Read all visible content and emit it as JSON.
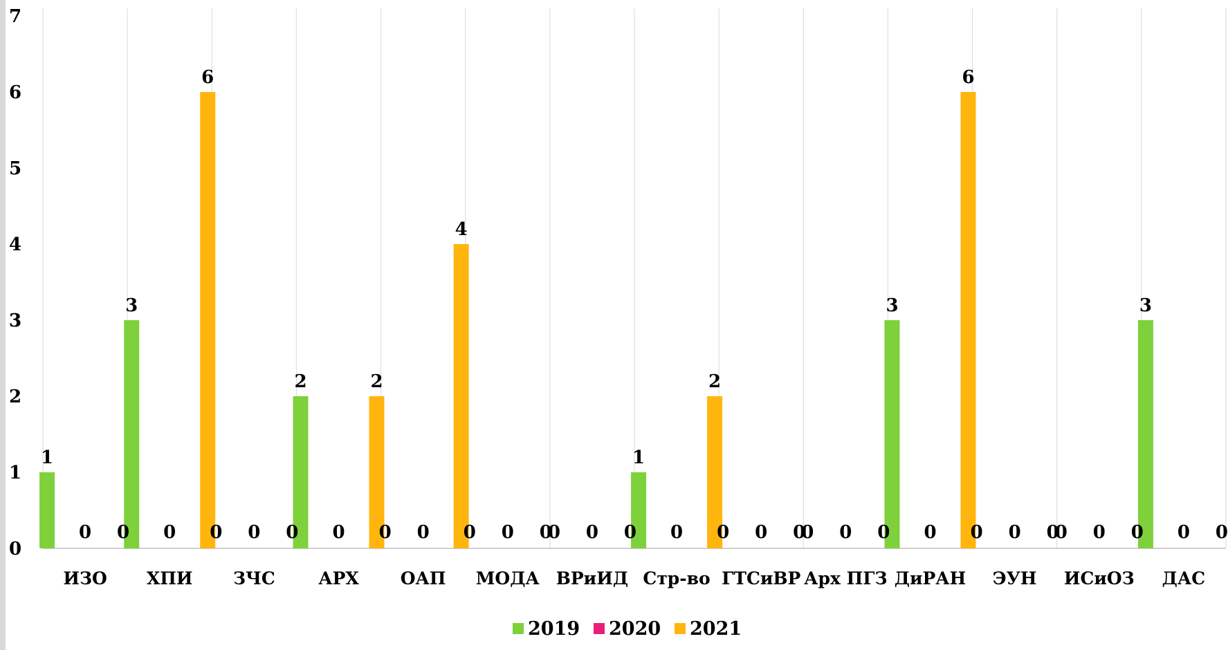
{
  "chart_data": {
    "type": "bar",
    "categories": [
      "ИЗО",
      "ХПИ",
      "ЗЧС",
      "АРХ",
      "ОАП",
      "МОДА",
      "ВРиИД",
      "Стр-во",
      "ГТСиВР",
      "Арх ПГЗ",
      "ДиРАН",
      "ЭУН",
      "ИСиОЗ",
      "ДАС"
    ],
    "series": [
      {
        "name": "2019",
        "color": "#7ed13b",
        "values": [
          1,
          3,
          0,
          2,
          0,
          0,
          0,
          1,
          0,
          0,
          3,
          0,
          0,
          3
        ]
      },
      {
        "name": "2020",
        "color": "#e91e78",
        "values": [
          0,
          0,
          0,
          0,
          0,
          0,
          0,
          0,
          0,
          0,
          0,
          0,
          0,
          0
        ]
      },
      {
        "name": "2021",
        "color": "#ffb50d",
        "values": [
          0,
          6,
          0,
          2,
          4,
          0,
          0,
          2,
          0,
          0,
          6,
          0,
          0,
          0
        ]
      }
    ],
    "yticks": [
      "0",
      "1",
      "2",
      "3",
      "3",
      "4",
      "5",
      "6",
      "7"
    ],
    "ylim": [
      0,
      7
    ],
    "grid": true,
    "legend_position": "bottom"
  }
}
